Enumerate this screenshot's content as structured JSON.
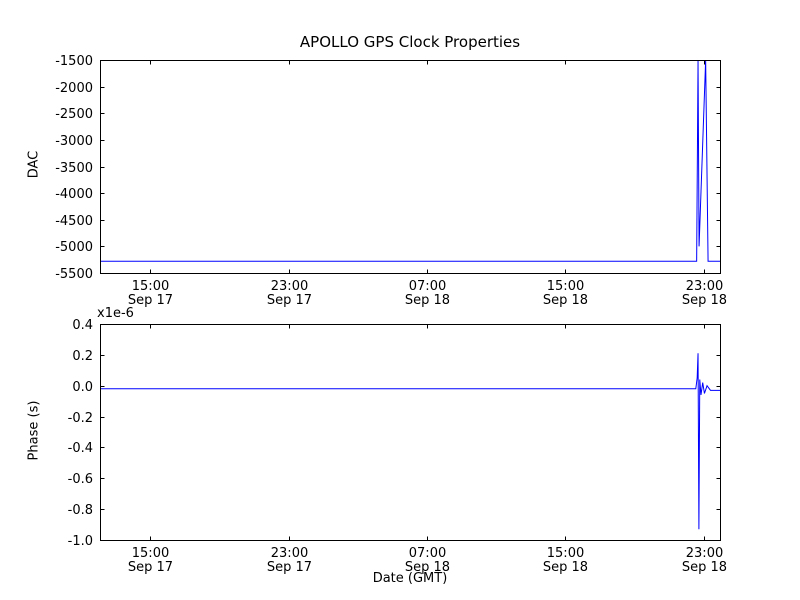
{
  "figure": {
    "background": "#ffffff",
    "frame_color": "#000000"
  },
  "labels": {
    "title": "APOLLO GPS Clock Properties",
    "top_ylabel": "DAC",
    "bottom_ylabel": "Phase (s)",
    "xlabel": "Date (GMT)",
    "offset_label": "x1e-6"
  },
  "chart_data": [
    {
      "type": "line",
      "title": "APOLLO GPS Clock Properties",
      "ylabel": "DAC",
      "series_name": "dac-line",
      "line_color": "#0000ff",
      "grid": false,
      "legend": "none",
      "ylim": [
        -5500,
        -1500
      ],
      "yticks": [
        -1500,
        -2000,
        -2500,
        -3000,
        -3500,
        -4000,
        -4500,
        -5000,
        -5500
      ],
      "ytick_labels": [
        "-1500",
        "-2000",
        "-2500",
        "-3000",
        "-3500",
        "-4000",
        "-4500",
        "-5000",
        "-5500"
      ],
      "xlim": [
        12.1,
        47.95
      ],
      "xticks": [
        15,
        23,
        31,
        39,
        47
      ],
      "xtick_labels": [
        {
          "time": "15:00",
          "date": "Sep 17"
        },
        {
          "time": "23:00",
          "date": "Sep 17"
        },
        {
          "time": "07:00",
          "date": "Sep 18"
        },
        {
          "time": "15:00",
          "date": "Sep 18"
        },
        {
          "time": "23:00",
          "date": "Sep 18"
        }
      ],
      "x_unit": "hours since Sep 17 00:00 GMT",
      "points": [
        [
          12.1,
          -5280
        ],
        [
          46.6,
          -5280
        ],
        [
          46.68,
          -1520
        ],
        [
          46.74,
          -5000
        ],
        [
          47.12,
          -1500
        ],
        [
          47.26,
          -5280
        ],
        [
          47.95,
          -5280
        ]
      ]
    },
    {
      "type": "line",
      "ylabel": "Phase (s)",
      "xlabel": "Date (GMT)",
      "offset_label": "x1e-6",
      "series_name": "phase-line",
      "line_color": "#0000ff",
      "grid": false,
      "legend": "none",
      "ylim": [
        -1.0,
        0.4
      ],
      "yticks": [
        0.4,
        0.2,
        0.0,
        -0.2,
        -0.4,
        -0.6,
        -0.8,
        -1.0
      ],
      "ytick_labels": [
        "0.4",
        "0.2",
        "0.0",
        "-0.2",
        "-0.4",
        "-0.6",
        "-0.8",
        "-1.0"
      ],
      "xlim": [
        12.1,
        47.95
      ],
      "xticks": [
        15,
        23,
        31,
        39,
        47
      ],
      "xtick_labels": [
        {
          "time": "15:00",
          "date": "Sep 17"
        },
        {
          "time": "23:00",
          "date": "Sep 17"
        },
        {
          "time": "07:00",
          "date": "Sep 18"
        },
        {
          "time": "15:00",
          "date": "Sep 18"
        },
        {
          "time": "23:00",
          "date": "Sep 18"
        }
      ],
      "x_unit": "hours since Sep 17 00:00 GMT",
      "y_multiplier": "1e-6",
      "points": [
        [
          12.1,
          -0.02
        ],
        [
          46.55,
          -0.02
        ],
        [
          46.63,
          0.05
        ],
        [
          46.68,
          0.21
        ],
        [
          46.73,
          -0.93
        ],
        [
          46.78,
          0.04
        ],
        [
          46.85,
          -0.06
        ],
        [
          46.95,
          0.02
        ],
        [
          47.05,
          -0.05
        ],
        [
          47.2,
          0.0
        ],
        [
          47.4,
          -0.03
        ],
        [
          47.95,
          -0.03
        ]
      ]
    }
  ]
}
